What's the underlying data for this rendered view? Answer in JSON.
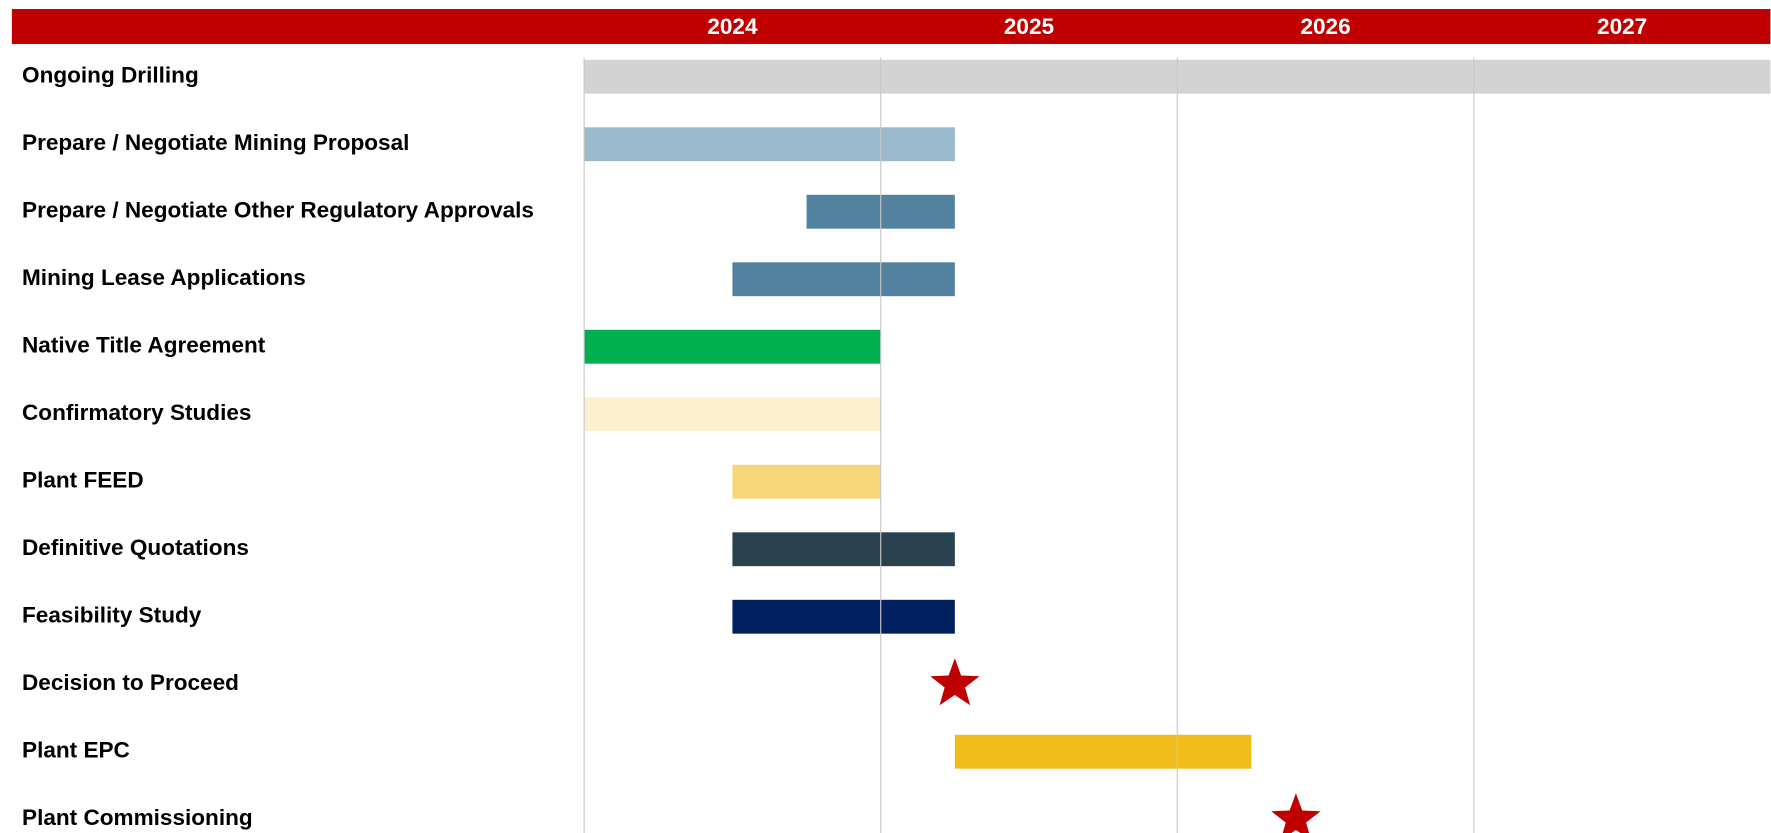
{
  "chart_data": {
    "type": "gantt",
    "xlim": [
      2024,
      2028
    ],
    "xticks": [
      2024,
      2025,
      2026,
      2027
    ],
    "grid": true,
    "header_color": "#c00000",
    "tasks": [
      {
        "name": "Ongoing Drilling",
        "start": 2024,
        "end": 2028,
        "color": "#d3d3d3"
      },
      {
        "name": "Prepare / Negotiate Mining Proposal",
        "start": 2024,
        "end": 2025.25,
        "color": "#9ab9cc"
      },
      {
        "name": "Prepare / Negotiate Other Regulatory Approvals",
        "start": 2024.75,
        "end": 2025.25,
        "color": "#52829f"
      },
      {
        "name": "Mining Lease Applications",
        "start": 2024.5,
        "end": 2025.25,
        "color": "#52829f"
      },
      {
        "name": "Native Title Agreement",
        "start": 2024,
        "end": 2025,
        "color": "#00b050"
      },
      {
        "name": "Confirmatory Studies",
        "start": 2024,
        "end": 2025,
        "color": "#fcf0cf"
      },
      {
        "name": "Plant FEED",
        "start": 2024.5,
        "end": 2025,
        "color": "#f5d77a"
      },
      {
        "name": "Definitive Quotations",
        "start": 2024.5,
        "end": 2025.25,
        "color": "#2a4250"
      },
      {
        "name": "Feasibility Study",
        "start": 2024.5,
        "end": 2025.25,
        "color": "#002060"
      },
      {
        "name": "Decision to Proceed",
        "date": 2025.25,
        "color": "#c00000"
      },
      {
        "name": "Plant EPC",
        "start": 2025.25,
        "end": 2026.25,
        "color": "#f0bc19"
      },
      {
        "name": "Plant Commissioning",
        "date": 2026.4,
        "color": "#c00000"
      }
    ]
  }
}
